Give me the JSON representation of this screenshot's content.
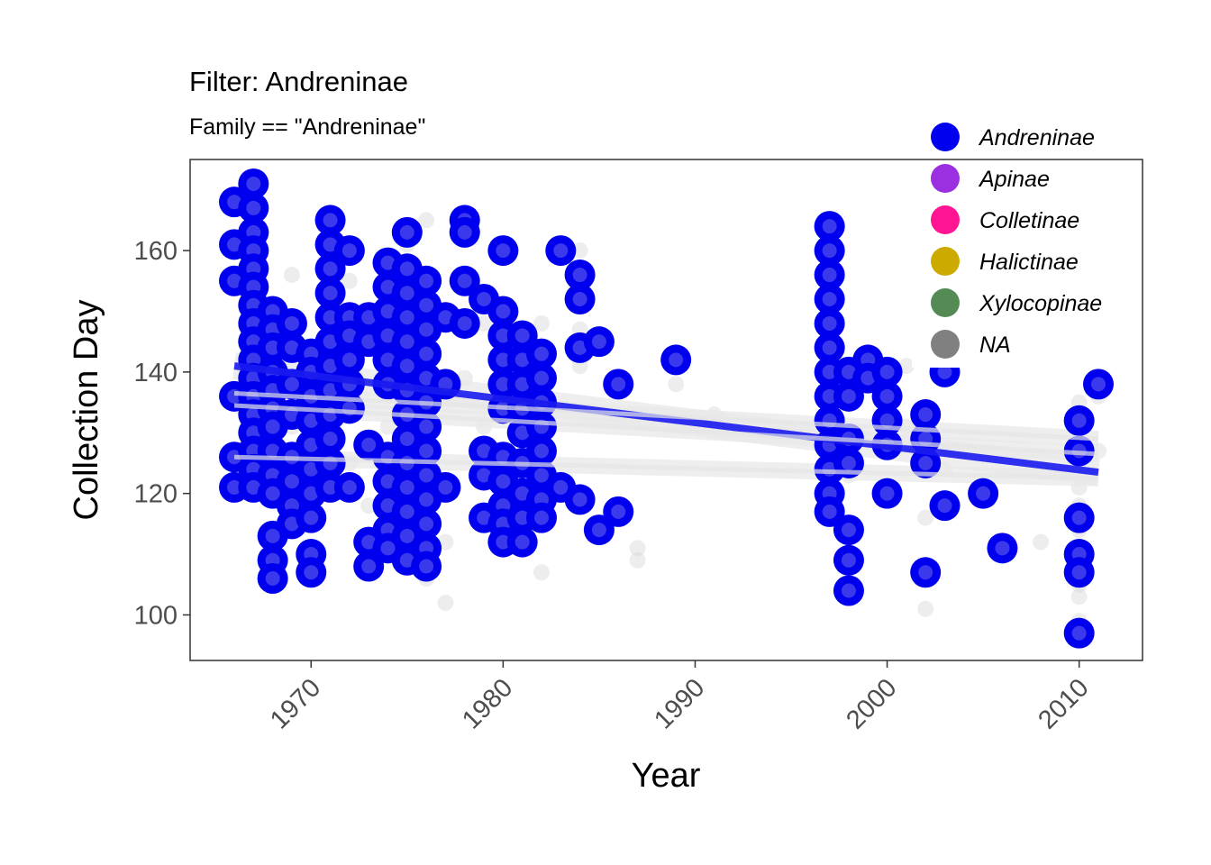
{
  "chart_data": {
    "type": "scatter",
    "title": "Filter: Andreninae",
    "subtitle": "Family == \"Andreninae\"",
    "xlabel": "Year",
    "ylabel": "Collection Day",
    "xlim": [
      1963.7,
      2013.3
    ],
    "ylim": [
      92.5,
      175.0
    ],
    "x_ticks": [
      1970,
      1980,
      1990,
      2000,
      2010
    ],
    "x_tick_labels": [
      "1970",
      "1980",
      "1990",
      "2000",
      "2010"
    ],
    "y_ticks": [
      100,
      120,
      140,
      160
    ],
    "y_tick_labels": [
      "100",
      "120",
      "140",
      "160"
    ],
    "grid": false,
    "legend": {
      "position": "top-right",
      "entries": [
        {
          "label": "Andreninae",
          "color": "#0000ee"
        },
        {
          "label": "Apinae",
          "color": "#9b30e0"
        },
        {
          "label": "Colletinae",
          "color": "#ff1493"
        },
        {
          "label": "Halictinae",
          "color": "#ccaa00"
        },
        {
          "label": "Xylocopinae",
          "color": "#548b54"
        },
        {
          "label": "NA",
          "color": "#808080"
        }
      ]
    },
    "series": [
      {
        "name": "Andreninae",
        "color": "#0000ee",
        "points": [
          [
            1966,
            168
          ],
          [
            1966,
            161
          ],
          [
            1966,
            155
          ],
          [
            1966,
            136
          ],
          [
            1966,
            121
          ],
          [
            1966,
            126
          ],
          [
            1967,
            171
          ],
          [
            1967,
            167
          ],
          [
            1967,
            163
          ],
          [
            1967,
            160
          ],
          [
            1967,
            157
          ],
          [
            1967,
            154
          ],
          [
            1967,
            151
          ],
          [
            1967,
            148
          ],
          [
            1967,
            145
          ],
          [
            1967,
            142
          ],
          [
            1967,
            139
          ],
          [
            1967,
            136
          ],
          [
            1967,
            133
          ],
          [
            1967,
            130
          ],
          [
            1967,
            127
          ],
          [
            1967,
            124
          ],
          [
            1967,
            121
          ],
          [
            1968,
            150
          ],
          [
            1968,
            147
          ],
          [
            1968,
            144
          ],
          [
            1968,
            140
          ],
          [
            1968,
            137
          ],
          [
            1968,
            134
          ],
          [
            1968,
            131
          ],
          [
            1968,
            127
          ],
          [
            1968,
            123
          ],
          [
            1968,
            120
          ],
          [
            1968,
            113
          ],
          [
            1968,
            109
          ],
          [
            1968,
            106
          ],
          [
            1969,
            148
          ],
          [
            1969,
            144
          ],
          [
            1969,
            138
          ],
          [
            1969,
            133
          ],
          [
            1969,
            126
          ],
          [
            1969,
            122
          ],
          [
            1969,
            118
          ],
          [
            1969,
            115
          ],
          [
            1970,
            143
          ],
          [
            1970,
            140
          ],
          [
            1970,
            136
          ],
          [
            1970,
            132
          ],
          [
            1970,
            128
          ],
          [
            1970,
            124
          ],
          [
            1970,
            120
          ],
          [
            1970,
            116
          ],
          [
            1970,
            110
          ],
          [
            1970,
            107
          ],
          [
            1971,
            165
          ],
          [
            1971,
            161
          ],
          [
            1971,
            157
          ],
          [
            1971,
            153
          ],
          [
            1971,
            149
          ],
          [
            1971,
            145
          ],
          [
            1971,
            141
          ],
          [
            1971,
            137
          ],
          [
            1971,
            133
          ],
          [
            1971,
            129
          ],
          [
            1971,
            125
          ],
          [
            1971,
            121
          ],
          [
            1972,
            160
          ],
          [
            1972,
            149
          ],
          [
            1972,
            146
          ],
          [
            1972,
            142
          ],
          [
            1972,
            138
          ],
          [
            1972,
            134
          ],
          [
            1972,
            121
          ],
          [
            1973,
            149
          ],
          [
            1973,
            145
          ],
          [
            1973,
            128
          ],
          [
            1973,
            112
          ],
          [
            1973,
            108
          ],
          [
            1974,
            158
          ],
          [
            1974,
            154
          ],
          [
            1974,
            150
          ],
          [
            1974,
            146
          ],
          [
            1974,
            142
          ],
          [
            1974,
            138
          ],
          [
            1974,
            126
          ],
          [
            1974,
            122
          ],
          [
            1974,
            118
          ],
          [
            1974,
            114
          ],
          [
            1974,
            111
          ],
          [
            1975,
            163
          ],
          [
            1975,
            157
          ],
          [
            1975,
            153
          ],
          [
            1975,
            149
          ],
          [
            1975,
            145
          ],
          [
            1975,
            141
          ],
          [
            1975,
            137
          ],
          [
            1975,
            133
          ],
          [
            1975,
            129
          ],
          [
            1975,
            125
          ],
          [
            1975,
            121
          ],
          [
            1975,
            117
          ],
          [
            1975,
            113
          ],
          [
            1975,
            109
          ],
          [
            1976,
            155
          ],
          [
            1976,
            151
          ],
          [
            1976,
            147
          ],
          [
            1976,
            143
          ],
          [
            1976,
            139
          ],
          [
            1976,
            135
          ],
          [
            1976,
            131
          ],
          [
            1976,
            127
          ],
          [
            1976,
            123
          ],
          [
            1976,
            119
          ],
          [
            1976,
            115
          ],
          [
            1976,
            111
          ],
          [
            1976,
            108
          ],
          [
            1977,
            149
          ],
          [
            1977,
            138
          ],
          [
            1977,
            121
          ],
          [
            1978,
            165
          ],
          [
            1978,
            163
          ],
          [
            1978,
            155
          ],
          [
            1978,
            148
          ],
          [
            1979,
            152
          ],
          [
            1979,
            127
          ],
          [
            1979,
            123
          ],
          [
            1979,
            116
          ],
          [
            1980,
            160
          ],
          [
            1980,
            150
          ],
          [
            1980,
            146
          ],
          [
            1980,
            142
          ],
          [
            1980,
            138
          ],
          [
            1980,
            134
          ],
          [
            1980,
            126
          ],
          [
            1980,
            122
          ],
          [
            1980,
            118
          ],
          [
            1980,
            115
          ],
          [
            1980,
            112
          ],
          [
            1981,
            146
          ],
          [
            1981,
            142
          ],
          [
            1981,
            138
          ],
          [
            1981,
            134
          ],
          [
            1981,
            130
          ],
          [
            1981,
            125
          ],
          [
            1981,
            120
          ],
          [
            1981,
            116
          ],
          [
            1981,
            112
          ],
          [
            1982,
            143
          ],
          [
            1982,
            139
          ],
          [
            1982,
            135
          ],
          [
            1982,
            131
          ],
          [
            1982,
            127
          ],
          [
            1982,
            123
          ],
          [
            1982,
            119
          ],
          [
            1982,
            116
          ],
          [
            1983,
            160
          ],
          [
            1983,
            121
          ],
          [
            1984,
            156
          ],
          [
            1984,
            152
          ],
          [
            1984,
            144
          ],
          [
            1984,
            119
          ],
          [
            1985,
            145
          ],
          [
            1985,
            114
          ],
          [
            1986,
            138
          ],
          [
            1986,
            117
          ],
          [
            1989,
            142
          ],
          [
            1997,
            164
          ],
          [
            1997,
            160
          ],
          [
            1997,
            156
          ],
          [
            1997,
            152
          ],
          [
            1997,
            148
          ],
          [
            1997,
            144
          ],
          [
            1997,
            140
          ],
          [
            1997,
            136
          ],
          [
            1997,
            132
          ],
          [
            1997,
            128
          ],
          [
            1997,
            124
          ],
          [
            1997,
            120
          ],
          [
            1997,
            117
          ],
          [
            1998,
            140
          ],
          [
            1998,
            136
          ],
          [
            1998,
            129
          ],
          [
            1998,
            125
          ],
          [
            1998,
            114
          ],
          [
            1998,
            109
          ],
          [
            1998,
            104
          ],
          [
            1999,
            142
          ],
          [
            1999,
            139
          ],
          [
            2000,
            140
          ],
          [
            2000,
            136
          ],
          [
            2000,
            132
          ],
          [
            2000,
            128
          ],
          [
            2000,
            120
          ],
          [
            2002,
            133
          ],
          [
            2002,
            129
          ],
          [
            2002,
            125
          ],
          [
            2002,
            107
          ],
          [
            2003,
            140
          ],
          [
            2003,
            118
          ],
          [
            2005,
            120
          ],
          [
            2006,
            111
          ],
          [
            2010,
            132
          ],
          [
            2010,
            127
          ],
          [
            2010,
            116
          ],
          [
            2010,
            110
          ],
          [
            2010,
            107
          ],
          [
            2010,
            97
          ],
          [
            2011,
            138
          ]
        ]
      },
      {
        "name": "NA",
        "color": "#808080",
        "points": [
          [
            1966,
            126
          ],
          [
            1967,
            159
          ],
          [
            1967,
            146
          ],
          [
            1967,
            137
          ],
          [
            1968,
            148
          ],
          [
            1968,
            136
          ],
          [
            1968,
            121
          ],
          [
            1969,
            156
          ],
          [
            1969,
            146
          ],
          [
            1969,
            131
          ],
          [
            1969,
            117
          ],
          [
            1970,
            143
          ],
          [
            1970,
            135
          ],
          [
            1970,
            109
          ],
          [
            1971,
            163
          ],
          [
            1971,
            150
          ],
          [
            1971,
            137
          ],
          [
            1972,
            155
          ],
          [
            1972,
            125
          ],
          [
            1973,
            111
          ],
          [
            1973,
            118
          ],
          [
            1974,
            144
          ],
          [
            1974,
            131
          ],
          [
            1975,
            161
          ],
          [
            1975,
            143
          ],
          [
            1975,
            128
          ],
          [
            1975,
            114
          ],
          [
            1976,
            165
          ],
          [
            1976,
            132
          ],
          [
            1976,
            117
          ],
          [
            1976,
            106
          ],
          [
            1977,
            139
          ],
          [
            1977,
            112
          ],
          [
            1977,
            102
          ],
          [
            1978,
            154
          ],
          [
            1978,
            139
          ],
          [
            1979,
            148
          ],
          [
            1979,
            131
          ],
          [
            1980,
            145
          ],
          [
            1980,
            125
          ],
          [
            1981,
            132
          ],
          [
            1981,
            118
          ],
          [
            1982,
            148
          ],
          [
            1982,
            107
          ],
          [
            1984,
            160
          ],
          [
            1984,
            147
          ],
          [
            1984,
            141
          ],
          [
            1987,
            111
          ],
          [
            1987,
            109
          ],
          [
            1989,
            138
          ],
          [
            1991,
            133
          ],
          [
            1997,
            121
          ],
          [
            1998,
            123
          ],
          [
            1999,
            139
          ],
          [
            2001,
            141
          ],
          [
            2001,
            131
          ],
          [
            2002,
            101
          ],
          [
            2002,
            116
          ],
          [
            2003,
            124
          ],
          [
            2008,
            112
          ],
          [
            2010,
            135
          ],
          [
            2010,
            133
          ],
          [
            2010,
            126
          ],
          [
            2010,
            121
          ],
          [
            2010,
            118
          ],
          [
            2010,
            114
          ],
          [
            2010,
            108
          ],
          [
            2010,
            105
          ],
          [
            2010,
            103
          ],
          [
            2010,
            99
          ],
          [
            2011,
            136
          ],
          [
            2011,
            127
          ]
        ]
      }
    ],
    "trend_lines": [
      {
        "color": "#1a1aee",
        "x": [
          1966,
          2011
        ],
        "y": [
          141.0,
          123.5
        ]
      },
      {
        "color": "#e6e6e6",
        "x": [
          1966,
          2011
        ],
        "y": [
          136.5,
          129.0
        ]
      },
      {
        "color": "#e6e6e6",
        "x": [
          1966,
          2011
        ],
        "y": [
          134.5,
          126.5
        ]
      },
      {
        "color": "#e6e6e6",
        "x": [
          1966,
          2011
        ],
        "y": [
          126.0,
          122.5
        ]
      }
    ]
  }
}
